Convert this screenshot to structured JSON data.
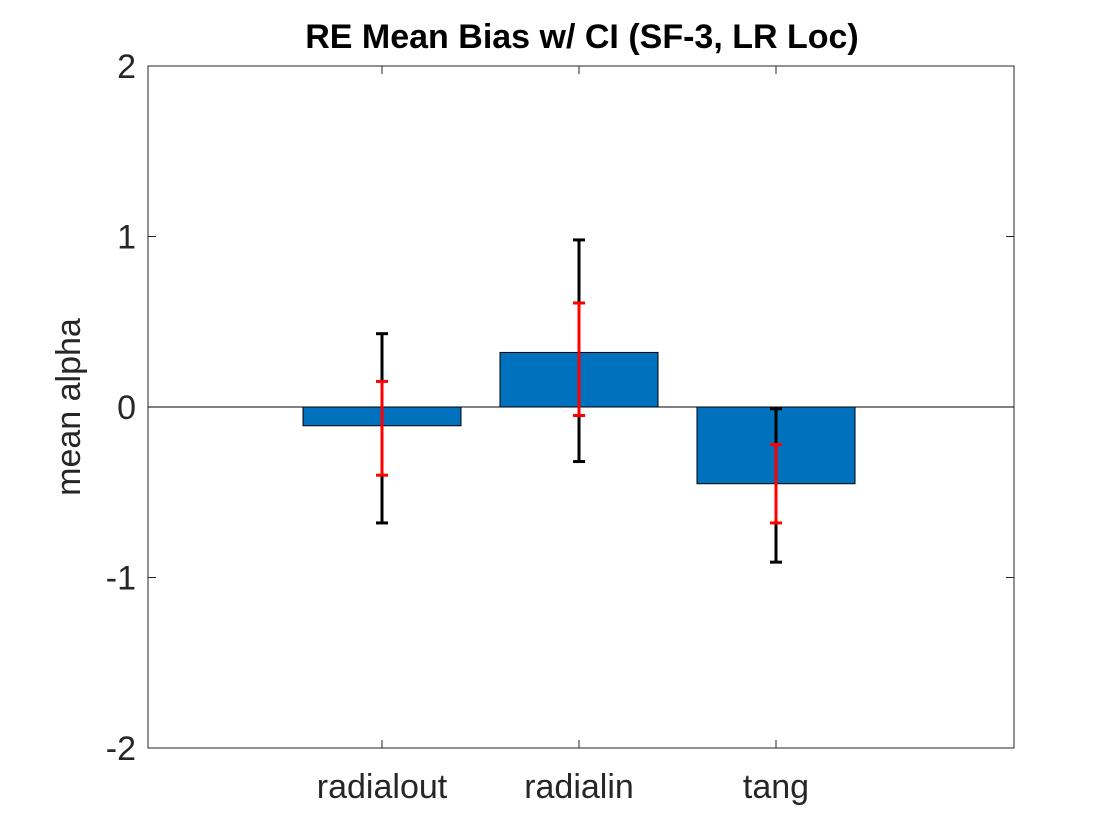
{
  "chart_data": {
    "type": "bar",
    "title": "RE Mean Bias w/ CI (SF-3, LR Loc)",
    "xlabel": "",
    "ylabel": "mean alpha",
    "categories": [
      "radialout",
      "radialin",
      "tang"
    ],
    "values": [
      -0.11,
      0.32,
      -0.45
    ],
    "outer_ci": [
      [
        -0.68,
        0.43
      ],
      [
        -0.32,
        0.98
      ],
      [
        -0.91,
        -0.01
      ]
    ],
    "inner_ci": [
      [
        -0.4,
        0.15
      ],
      [
        -0.05,
        0.61
      ],
      [
        -0.68,
        -0.22
      ]
    ],
    "ylim": [
      -2,
      2
    ],
    "yticks": [
      -2,
      -1,
      0,
      1,
      2
    ],
    "ytick_labels": [
      "-2",
      "-1",
      "0",
      "1",
      "2"
    ],
    "grid": false,
    "colors": {
      "bar": "#0072BD",
      "bar_edge": "#000000",
      "outer_ci": "#000000",
      "inner_ci": "#FF0000",
      "axis": "#262626"
    }
  }
}
